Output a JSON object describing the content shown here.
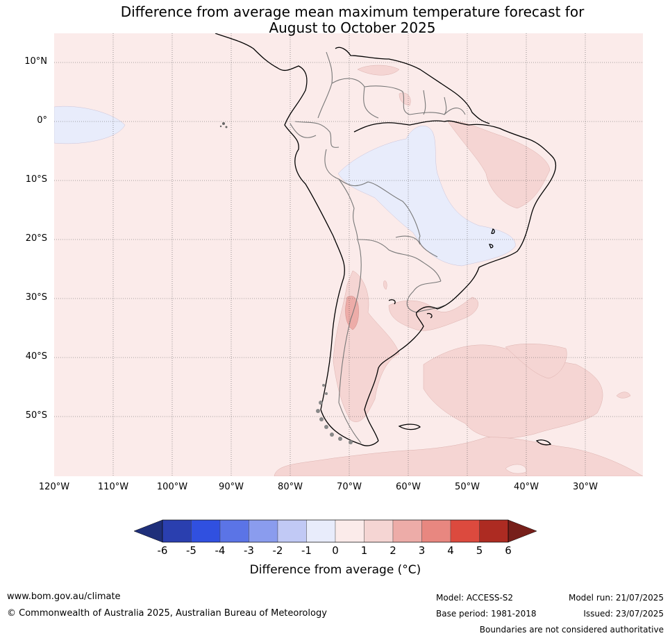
{
  "title_line1": "Difference from average mean maximum temperature forecast for",
  "title_line2": "August to October 2025",
  "lat_labels": [
    "10°N",
    "0°",
    "10°S",
    "20°S",
    "30°S",
    "40°S",
    "50°S"
  ],
  "lon_labels": [
    "120°W",
    "110°W",
    "100°W",
    "90°W",
    "80°W",
    "70°W",
    "60°W",
    "50°W",
    "40°W",
    "30°W"
  ],
  "colorbar": {
    "ticks": [
      "-6",
      "-5",
      "-4",
      "-3",
      "-2",
      "-1",
      "0",
      "1",
      "2",
      "3",
      "4",
      "5",
      "6"
    ],
    "colors": [
      "#1f2f7a",
      "#2a3faf",
      "#3050e0",
      "#5b74e6",
      "#8a9cee",
      "#c1c9f5",
      "#e8ecfb",
      "#fbebea",
      "#f5d5d3",
      "#edaca8",
      "#e88780",
      "#dc4a3e",
      "#ad2b22",
      "#771f1a"
    ],
    "label": "Difference from average (°C)"
  },
  "footer": {
    "website": "www.bom.gov.au/climate",
    "copyright": "© Commonwealth of Australia 2025, Australian Bureau of Meteorology",
    "model": "Model: ACCESS-S2",
    "base_period": "Base period: 1981-2018",
    "model_run": "Model run: 21/07/2025",
    "issued": "Issued: 23/07/2025",
    "disclaimer": "Boundaries are not considered authoritative"
  }
}
